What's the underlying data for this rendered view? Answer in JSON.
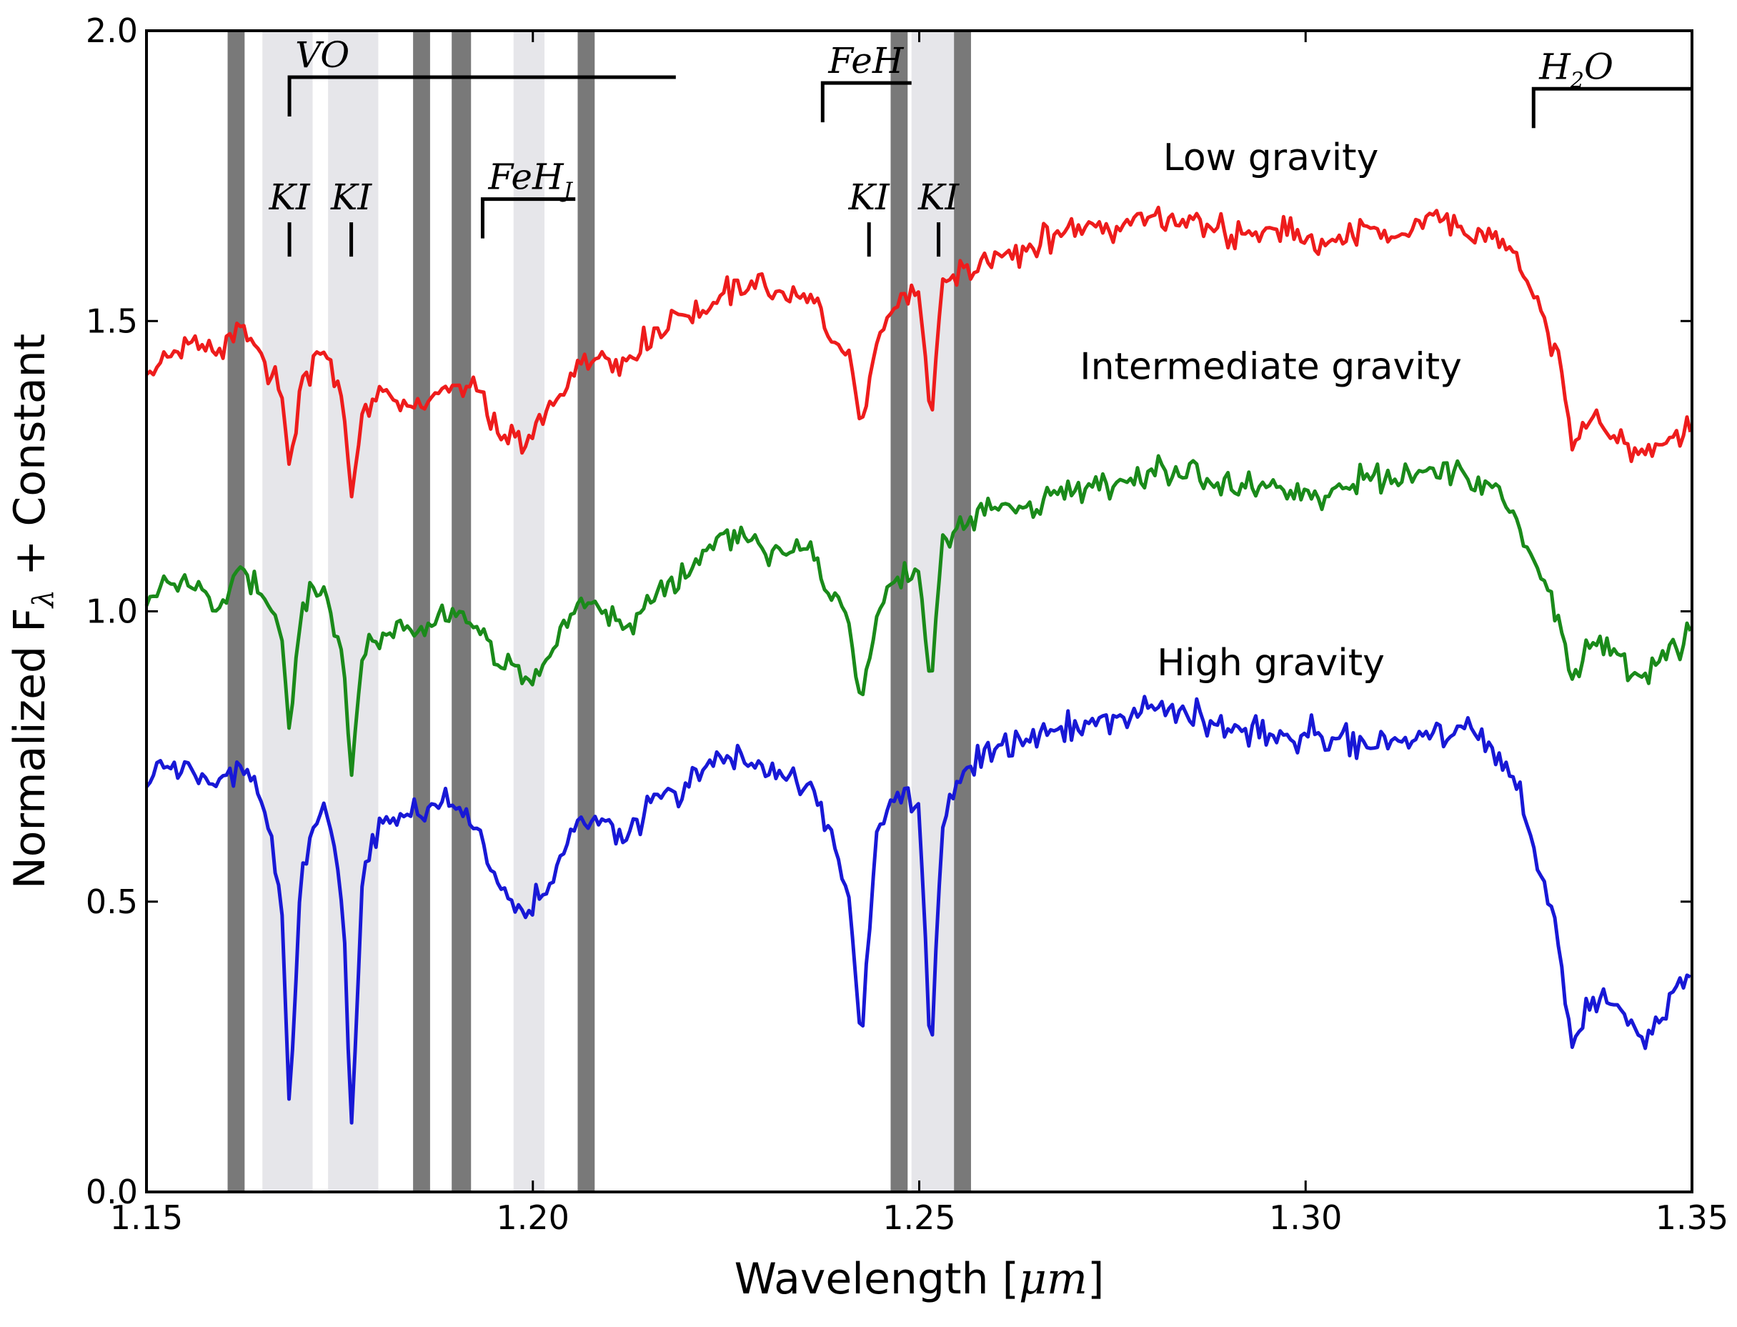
{
  "chart_data": {
    "type": "line",
    "xlabel": "Wavelength [",
    "xlabel_unit": "μm",
    "xlabel_close": "]",
    "ylabel": "Normalized F",
    "ylabel_sub": "λ",
    "ylabel_rest": " + Constant",
    "xlim": [
      1.15,
      1.35
    ],
    "ylim": [
      0.0,
      2.0
    ],
    "x_ticks": [
      1.15,
      1.2,
      1.25,
      1.3,
      1.35
    ],
    "x_tick_labels": [
      "1.15",
      "1.20",
      "1.25",
      "1.30",
      "1.35"
    ],
    "y_ticks": [
      0.0,
      0.5,
      1.0,
      1.5,
      2.0
    ],
    "y_tick_labels": [
      "0.0",
      "0.5",
      "1.0",
      "1.5",
      "2.0"
    ],
    "grid": false,
    "series": [
      {
        "name": "Low gravity",
        "color": "#ee1c1c",
        "points": [
          [
            1.15,
            1.41
          ],
          [
            1.153,
            1.44
          ],
          [
            1.156,
            1.47
          ],
          [
            1.159,
            1.44
          ],
          [
            1.162,
            1.5
          ],
          [
            1.165,
            1.44
          ],
          [
            1.1675,
            1.38
          ],
          [
            1.1685,
            1.24
          ],
          [
            1.17,
            1.4
          ],
          [
            1.173,
            1.45
          ],
          [
            1.1755,
            1.36
          ],
          [
            1.1765,
            1.19
          ],
          [
            1.178,
            1.35
          ],
          [
            1.181,
            1.38
          ],
          [
            1.184,
            1.35
          ],
          [
            1.187,
            1.37
          ],
          [
            1.19,
            1.39
          ],
          [
            1.193,
            1.38
          ],
          [
            1.196,
            1.3
          ],
          [
            1.199,
            1.28
          ],
          [
            1.202,
            1.35
          ],
          [
            1.205,
            1.4
          ],
          [
            1.208,
            1.44
          ],
          [
            1.212,
            1.43
          ],
          [
            1.216,
            1.49
          ],
          [
            1.22,
            1.51
          ],
          [
            1.224,
            1.54
          ],
          [
            1.228,
            1.56
          ],
          [
            1.232,
            1.55
          ],
          [
            1.236,
            1.54
          ],
          [
            1.2385,
            1.46
          ],
          [
            1.241,
            1.44
          ],
          [
            1.2425,
            1.31
          ],
          [
            1.2445,
            1.47
          ],
          [
            1.247,
            1.53
          ],
          [
            1.25,
            1.55
          ],
          [
            1.2515,
            1.32
          ],
          [
            1.253,
            1.57
          ],
          [
            1.256,
            1.59
          ],
          [
            1.26,
            1.61
          ],
          [
            1.264,
            1.63
          ],
          [
            1.268,
            1.65
          ],
          [
            1.272,
            1.67
          ],
          [
            1.276,
            1.66
          ],
          [
            1.28,
            1.68
          ],
          [
            1.284,
            1.67
          ],
          [
            1.288,
            1.66
          ],
          [
            1.292,
            1.65
          ],
          [
            1.296,
            1.66
          ],
          [
            1.3,
            1.64
          ],
          [
            1.304,
            1.64
          ],
          [
            1.308,
            1.66
          ],
          [
            1.312,
            1.65
          ],
          [
            1.316,
            1.68
          ],
          [
            1.32,
            1.66
          ],
          [
            1.324,
            1.65
          ],
          [
            1.327,
            1.62
          ],
          [
            1.329,
            1.55
          ],
          [
            1.331,
            1.5
          ],
          [
            1.333,
            1.43
          ],
          [
            1.3345,
            1.28
          ],
          [
            1.337,
            1.33
          ],
          [
            1.34,
            1.3
          ],
          [
            1.343,
            1.27
          ],
          [
            1.346,
            1.28
          ],
          [
            1.35,
            1.31
          ]
        ]
      },
      {
        "name": "Intermediate gravity",
        "color": "#1a8a1a",
        "points": [
          [
            1.15,
            1.02
          ],
          [
            1.153,
            1.05
          ],
          [
            1.156,
            1.04
          ],
          [
            1.159,
            1.0
          ],
          [
            1.162,
            1.08
          ],
          [
            1.165,
            1.03
          ],
          [
            1.1675,
            0.96
          ],
          [
            1.1685,
            0.79
          ],
          [
            1.17,
            1.0
          ],
          [
            1.173,
            1.04
          ],
          [
            1.1755,
            0.92
          ],
          [
            1.1765,
            0.71
          ],
          [
            1.178,
            0.93
          ],
          [
            1.181,
            0.96
          ],
          [
            1.184,
            0.97
          ],
          [
            1.187,
            0.98
          ],
          [
            1.19,
            1.0
          ],
          [
            1.193,
            0.97
          ],
          [
            1.196,
            0.9
          ],
          [
            1.199,
            0.88
          ],
          [
            1.202,
            0.92
          ],
          [
            1.205,
            0.99
          ],
          [
            1.208,
            1.02
          ],
          [
            1.212,
            0.97
          ],
          [
            1.216,
            1.03
          ],
          [
            1.22,
            1.06
          ],
          [
            1.224,
            1.13
          ],
          [
            1.228,
            1.12
          ],
          [
            1.232,
            1.1
          ],
          [
            1.236,
            1.11
          ],
          [
            1.2385,
            1.02
          ],
          [
            1.241,
            0.98
          ],
          [
            1.2425,
            0.84
          ],
          [
            1.2445,
            0.99
          ],
          [
            1.247,
            1.06
          ],
          [
            1.25,
            1.07
          ],
          [
            1.2515,
            0.86
          ],
          [
            1.253,
            1.12
          ],
          [
            1.256,
            1.15
          ],
          [
            1.26,
            1.18
          ],
          [
            1.264,
            1.18
          ],
          [
            1.268,
            1.21
          ],
          [
            1.272,
            1.21
          ],
          [
            1.276,
            1.22
          ],
          [
            1.28,
            1.24
          ],
          [
            1.284,
            1.23
          ],
          [
            1.288,
            1.22
          ],
          [
            1.292,
            1.21
          ],
          [
            1.296,
            1.22
          ],
          [
            1.3,
            1.2
          ],
          [
            1.304,
            1.21
          ],
          [
            1.308,
            1.23
          ],
          [
            1.312,
            1.22
          ],
          [
            1.316,
            1.24
          ],
          [
            1.32,
            1.25
          ],
          [
            1.324,
            1.22
          ],
          [
            1.327,
            1.17
          ],
          [
            1.329,
            1.1
          ],
          [
            1.331,
            1.05
          ],
          [
            1.333,
            0.98
          ],
          [
            1.3345,
            0.88
          ],
          [
            1.337,
            0.95
          ],
          [
            1.34,
            0.93
          ],
          [
            1.343,
            0.88
          ],
          [
            1.346,
            0.92
          ],
          [
            1.35,
            0.96
          ]
        ]
      },
      {
        "name": "High gravity",
        "color": "#1818d6",
        "points": [
          [
            1.15,
            0.7
          ],
          [
            1.153,
            0.74
          ],
          [
            1.156,
            0.73
          ],
          [
            1.159,
            0.7
          ],
          [
            1.162,
            0.74
          ],
          [
            1.165,
            0.67
          ],
          [
            1.1675,
            0.5
          ],
          [
            1.1685,
            0.14
          ],
          [
            1.17,
            0.56
          ],
          [
            1.173,
            0.67
          ],
          [
            1.1755,
            0.48
          ],
          [
            1.1765,
            0.1
          ],
          [
            1.178,
            0.55
          ],
          [
            1.181,
            0.64
          ],
          [
            1.184,
            0.65
          ],
          [
            1.187,
            0.66
          ],
          [
            1.19,
            0.67
          ],
          [
            1.193,
            0.62
          ],
          [
            1.196,
            0.52
          ],
          [
            1.199,
            0.48
          ],
          [
            1.202,
            0.52
          ],
          [
            1.205,
            0.62
          ],
          [
            1.208,
            0.64
          ],
          [
            1.212,
            0.6
          ],
          [
            1.216,
            0.68
          ],
          [
            1.22,
            0.7
          ],
          [
            1.224,
            0.75
          ],
          [
            1.228,
            0.74
          ],
          [
            1.232,
            0.72
          ],
          [
            1.236,
            0.7
          ],
          [
            1.2385,
            0.62
          ],
          [
            1.241,
            0.5
          ],
          [
            1.2425,
            0.25
          ],
          [
            1.2445,
            0.62
          ],
          [
            1.247,
            0.69
          ],
          [
            1.25,
            0.66
          ],
          [
            1.2515,
            0.22
          ],
          [
            1.253,
            0.63
          ],
          [
            1.256,
            0.73
          ],
          [
            1.26,
            0.77
          ],
          [
            1.264,
            0.78
          ],
          [
            1.268,
            0.8
          ],
          [
            1.272,
            0.81
          ],
          [
            1.276,
            0.82
          ],
          [
            1.28,
            0.84
          ],
          [
            1.284,
            0.83
          ],
          [
            1.288,
            0.81
          ],
          [
            1.292,
            0.79
          ],
          [
            1.296,
            0.78
          ],
          [
            1.3,
            0.79
          ],
          [
            1.304,
            0.78
          ],
          [
            1.308,
            0.77
          ],
          [
            1.312,
            0.78
          ],
          [
            1.316,
            0.79
          ],
          [
            1.32,
            0.8
          ],
          [
            1.324,
            0.77
          ],
          [
            1.327,
            0.71
          ],
          [
            1.329,
            0.62
          ],
          [
            1.331,
            0.52
          ],
          [
            1.333,
            0.4
          ],
          [
            1.3345,
            0.25
          ],
          [
            1.337,
            0.33
          ],
          [
            1.34,
            0.32
          ],
          [
            1.343,
            0.27
          ],
          [
            1.346,
            0.3
          ],
          [
            1.35,
            0.38
          ]
        ]
      }
    ],
    "dark_bands": [
      {
        "from": 1.1605,
        "to": 1.1627
      },
      {
        "from": 1.1845,
        "to": 1.1867
      },
      {
        "from": 1.1895,
        "to": 1.192
      },
      {
        "from": 1.2058,
        "to": 1.208
      },
      {
        "from": 1.2463,
        "to": 1.2485
      },
      {
        "from": 1.2545,
        "to": 1.2567
      }
    ],
    "light_bands": [
      {
        "from": 1.165,
        "to": 1.1715
      },
      {
        "from": 1.1735,
        "to": 1.18
      },
      {
        "from": 1.1975,
        "to": 1.2015
      },
      {
        "from": 1.249,
        "to": 1.2545
      }
    ],
    "feature_brackets": [
      {
        "label": "VO",
        "sub": "",
        "x1": 1.1685,
        "x2": 1.2185,
        "y": 1.92
      },
      {
        "label": "FeH",
        "sub": "J",
        "x1": 1.1935,
        "x2": 1.2055,
        "y": 1.71
      },
      {
        "label": "FeH",
        "sub": "",
        "x1": 1.2375,
        "x2": 1.249,
        "y": 1.91
      },
      {
        "label": "H",
        "sub": "2",
        "label_rest": "O",
        "x1": 1.3295,
        "x2": 1.35,
        "y": 1.9
      }
    ],
    "ki_markers": [
      {
        "label": "KI",
        "x": 1.1685,
        "y": 1.67
      },
      {
        "label": "KI",
        "x": 1.1765,
        "y": 1.67
      },
      {
        "label": "KI",
        "x": 1.2435,
        "y": 1.67
      },
      {
        "label": "KI",
        "x": 1.2525,
        "y": 1.67
      }
    ],
    "annotations": [
      {
        "text": "Low gravity",
        "x": 1.2955,
        "y": 1.76
      },
      {
        "text": "Intermediate gravity",
        "x": 1.2955,
        "y": 1.4
      },
      {
        "text": "High gravity",
        "x": 1.2955,
        "y": 0.89
      }
    ]
  }
}
